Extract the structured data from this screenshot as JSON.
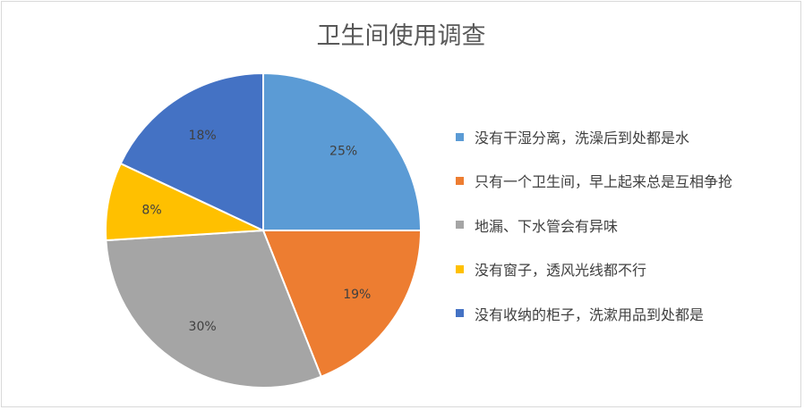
{
  "chart_data": {
    "type": "pie",
    "title": "卫生间使用调查",
    "categories": [
      "没有干湿分离，洗澡后到处都是水",
      "只有一个卫生间，早上起来总是互相争抢",
      "地漏、下水管会有异味",
      "没有窗子，透风光线都不行",
      "没有收纳的柜子，洗漱用品到处都是"
    ],
    "values": [
      25,
      19,
      30,
      8,
      18
    ],
    "data_labels": [
      "25%",
      "19%",
      "30%",
      "8%",
      "18%"
    ],
    "colors": [
      "#5b9bd5",
      "#ed7d31",
      "#a5a5a5",
      "#ffc000",
      "#4472c4"
    ],
    "legend_position": "right",
    "start_angle_deg": 0,
    "direction": "clockwise"
  }
}
